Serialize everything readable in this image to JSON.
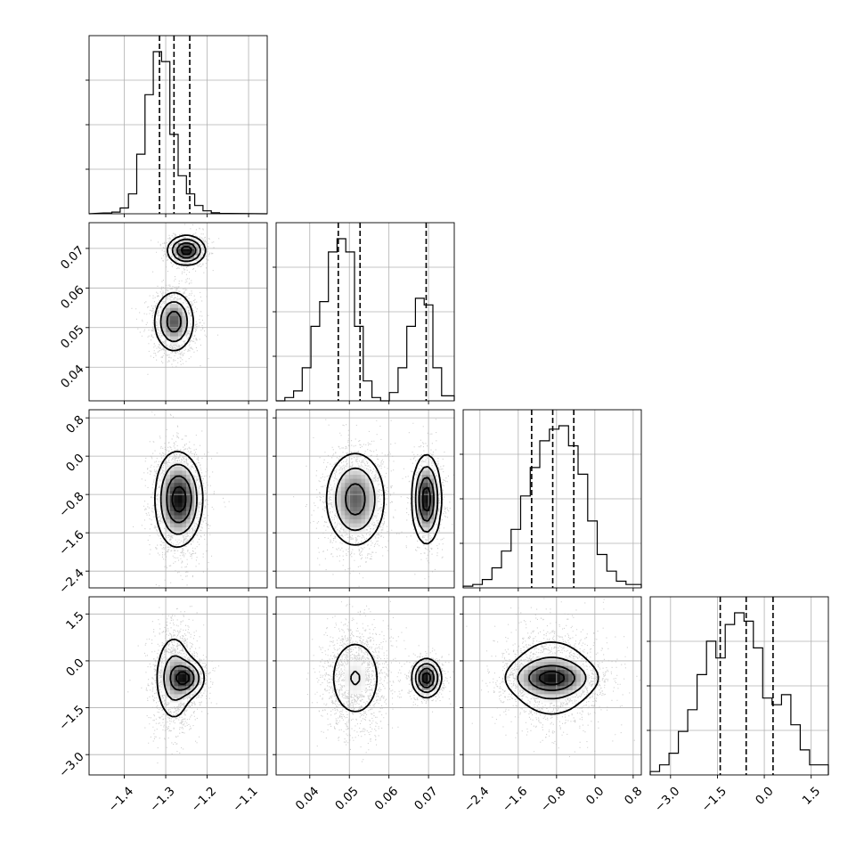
{
  "chart_data": {
    "type": "corner",
    "title": "",
    "n_params": 4,
    "parameters": [
      {
        "label": "",
        "range": [
          -1.485,
          -1.055
        ],
        "ticks": [
          -1.4,
          -1.3,
          -1.2,
          -1.1
        ],
        "tick_labels": [
          "-1.4",
          "-1.3",
          "-1.2",
          "-1.1"
        ],
        "quantiles": [
          -1.315,
          -1.28,
          -1.242
        ],
        "hist_bins": [
          -1.45,
          -1.43,
          -1.41,
          -1.39,
          -1.37,
          -1.35,
          -1.33,
          -1.31,
          -1.29,
          -1.27,
          -1.25,
          -1.23,
          -1.21,
          -1.19,
          -1.17,
          -1.15
        ],
        "hist_counts": [
          0.005,
          0.01,
          0.035,
          0.12,
          0.36,
          0.72,
          0.98,
          0.92,
          0.48,
          0.23,
          0.12,
          0.05,
          0.018,
          0.006,
          0.002
        ]
      },
      {
        "label": "",
        "range": [
          0.0315,
          0.0765
        ],
        "ticks": [
          0.04,
          0.05,
          0.06,
          0.07
        ],
        "tick_labels": [
          "0.04",
          "0.05",
          "0.06",
          "0.07"
        ],
        "quantiles": [
          0.0472,
          0.0527,
          0.0694
        ],
        "hist_bins": [
          0.0315,
          0.0337,
          0.0359,
          0.0381,
          0.0403,
          0.0425,
          0.0447,
          0.0469,
          0.0491,
          0.0513,
          0.0535,
          0.0557,
          0.0579,
          0.0601,
          0.0623,
          0.0645,
          0.0667,
          0.0689,
          0.0711,
          0.0733,
          0.0765
        ],
        "hist_counts": [
          0.0,
          0.02,
          0.06,
          0.2,
          0.45,
          0.6,
          0.9,
          0.98,
          0.9,
          0.45,
          0.12,
          0.02,
          0.0,
          0.05,
          0.2,
          0.45,
          0.62,
          0.58,
          0.2,
          0.03
        ]
      },
      {
        "label": "",
        "range": [
          -2.75,
          0.97
        ],
        "ticks": [
          -2.4,
          -1.6,
          -0.8,
          0.0,
          0.8
        ],
        "tick_labels": [
          "-2.4",
          "-1.6",
          "-0.8",
          "0.0",
          "0.8"
        ],
        "quantiles": [
          -1.32,
          -0.88,
          -0.44
        ],
        "hist_bins": [
          -2.75,
          -2.55,
          -2.35,
          -2.15,
          -1.95,
          -1.75,
          -1.55,
          -1.35,
          -1.15,
          -0.95,
          -0.75,
          -0.55,
          -0.35,
          -0.15,
          0.05,
          0.25,
          0.45,
          0.65,
          0.97
        ],
        "hist_counts": [
          0.01,
          0.02,
          0.05,
          0.12,
          0.22,
          0.35,
          0.55,
          0.72,
          0.88,
          0.95,
          0.97,
          0.85,
          0.68,
          0.4,
          0.2,
          0.1,
          0.04,
          0.02
        ]
      },
      {
        "label": "",
        "range": [
          -3.65,
          2.05
        ],
        "ticks": [
          -3.0,
          -1.5,
          0.0,
          1.5
        ],
        "tick_labels": [
          "-3.0",
          "-1.5",
          "0.0",
          "1.5"
        ],
        "quantiles": [
          -1.41,
          -0.58,
          0.28
        ],
        "hist_bins": [
          -3.65,
          -3.35,
          -3.05,
          -2.75,
          -2.45,
          -2.15,
          -1.85,
          -1.55,
          -1.25,
          -0.95,
          -0.65,
          -0.35,
          -0.05,
          0.25,
          0.55,
          0.85,
          1.15,
          1.45,
          2.05
        ],
        "hist_counts": [
          0.02,
          0.06,
          0.13,
          0.26,
          0.39,
          0.6,
          0.8,
          0.7,
          0.9,
          0.97,
          0.92,
          0.76,
          0.46,
          0.42,
          0.48,
          0.3,
          0.15,
          0.06
        ]
      }
    ],
    "clusters": [
      {
        "weight": 0.63,
        "mean": [
          -1.28,
          0.0515,
          -0.9,
          -0.55
        ],
        "sd": [
          0.024,
          0.0038,
          0.5,
          0.75
        ]
      },
      {
        "weight": 0.37,
        "mean": [
          -1.25,
          0.0695,
          -0.9,
          -0.55
        ],
        "sd": [
          0.022,
          0.0018,
          0.45,
          0.3
        ]
      }
    ],
    "hist_yticks": 4,
    "grid": true,
    "show_contours": true
  }
}
